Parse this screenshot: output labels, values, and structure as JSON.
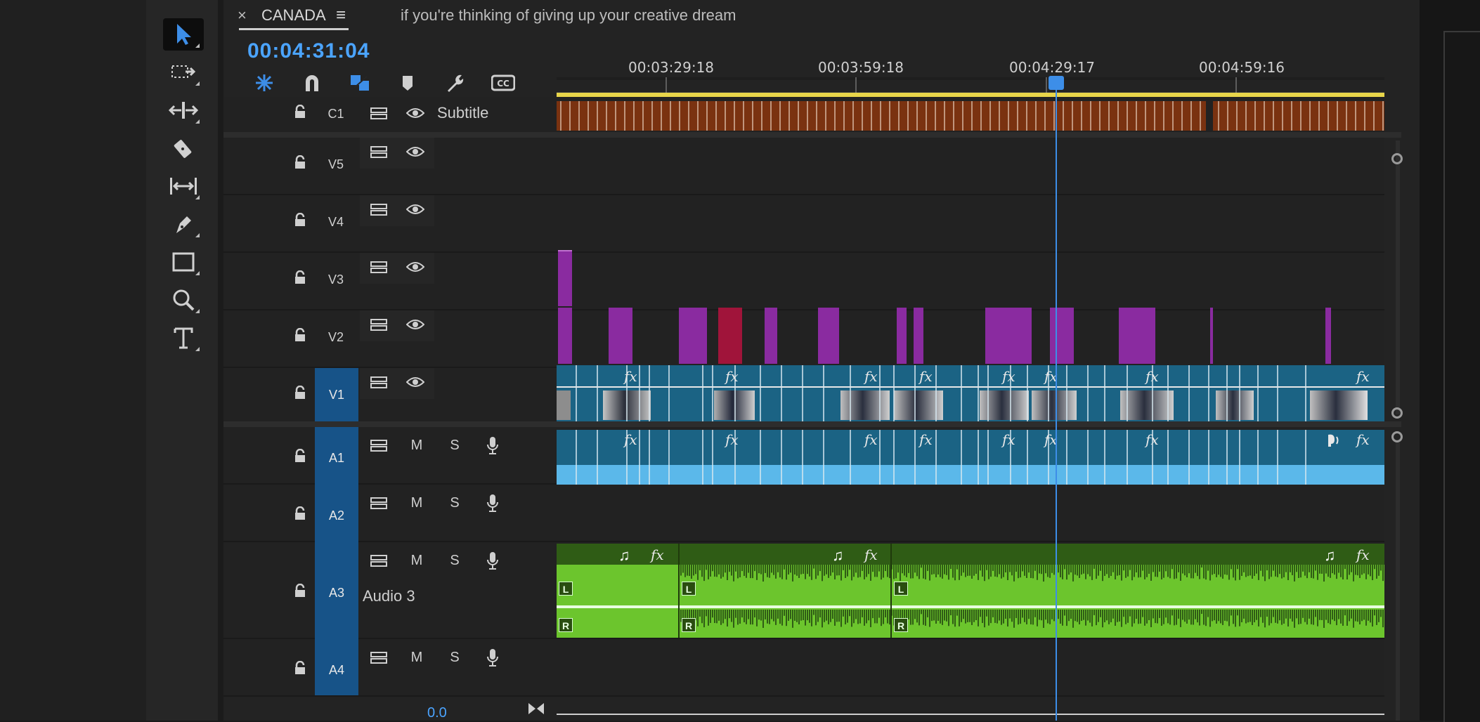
{
  "sequence": {
    "close_label": "×",
    "tab_title": "CANADA",
    "menu_label": "≡",
    "secondary_tab": "if you're thinking of giving up your creative dream"
  },
  "timecode": "00:04:31:04",
  "ruler": {
    "labels": [
      "00:03:29:18",
      "00:03:59:18",
      "00:04:29:17",
      "00:04:59:16"
    ]
  },
  "tools": [
    "selection-tool",
    "track-select-tool",
    "ripple-edit-tool",
    "razor-tool",
    "slip-tool",
    "pen-tool",
    "rectangle-tool",
    "zoom-tool",
    "type-tool"
  ],
  "header_tools": [
    "insert-sequence-icon",
    "snap-magnet-icon",
    "linked-selection-icon",
    "add-marker-icon",
    "wrench-settings-icon",
    "captions-icon"
  ],
  "tracks": {
    "c1": {
      "name": "C1",
      "label": "Subtitle"
    },
    "v5": {
      "name": "V5"
    },
    "v4": {
      "name": "V4"
    },
    "v3": {
      "name": "V3"
    },
    "v2": {
      "name": "V2"
    },
    "v1": {
      "name": "V1"
    },
    "a1": {
      "name": "A1",
      "m": "M",
      "s": "S"
    },
    "a2": {
      "name": "A2",
      "m": "M",
      "s": "S"
    },
    "a3": {
      "name": "A3",
      "m": "M",
      "s": "S",
      "label": "Audio 3"
    },
    "a4": {
      "name": "A4",
      "m": "M",
      "s": "S"
    }
  },
  "fx_label": "fx",
  "audio_channels": {
    "left": "L",
    "right": "R"
  },
  "music_note": "♫",
  "mix": {
    "value": "0.0"
  },
  "colors": {
    "accent": "#3d8ee8",
    "caption_clip": "#7a3210",
    "video_clip": "#1b6384",
    "purple_clip": "#8a2ba0",
    "red_clip": "#a0143a",
    "audio_a1": "#1b6384",
    "audio_wave_a1": "#5bb8ea",
    "audio_a3": "#6cc52d",
    "audio_a3_dark": "#2f5c15"
  }
}
